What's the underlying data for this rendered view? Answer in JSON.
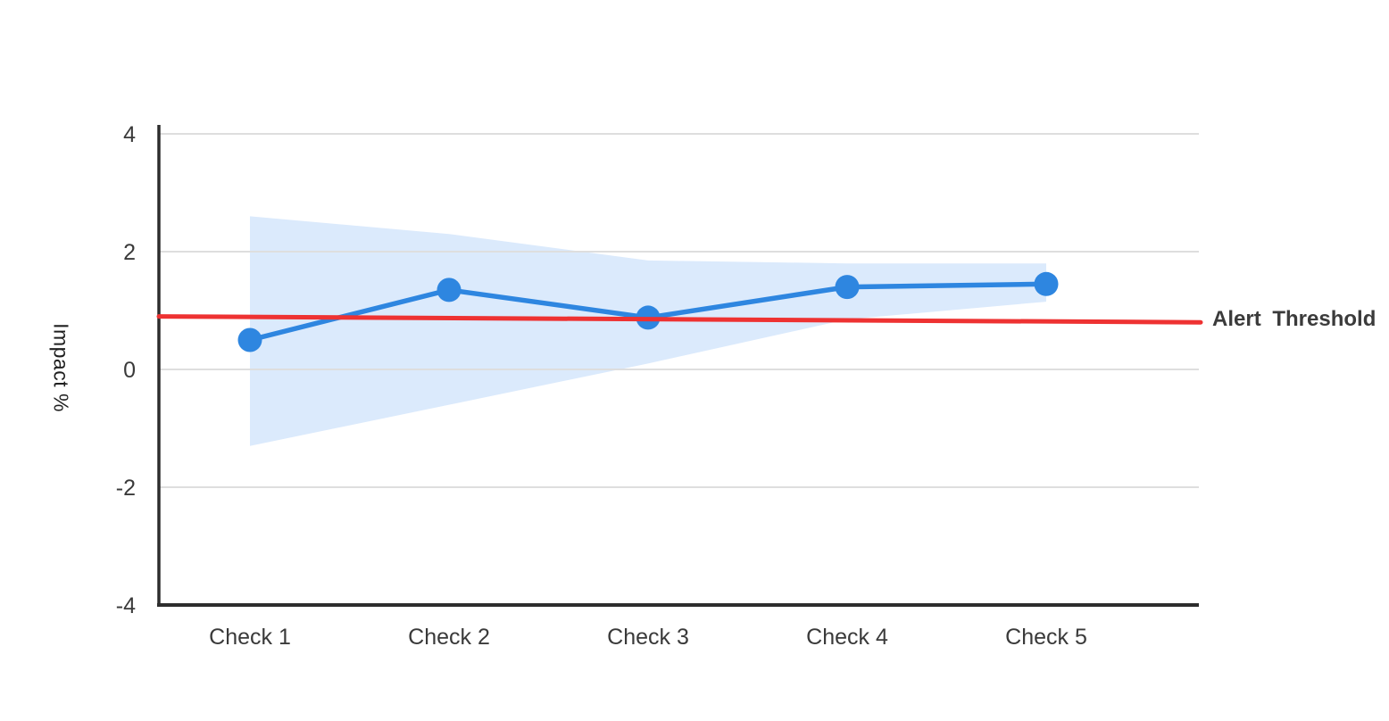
{
  "chart_data": {
    "type": "line",
    "title": "",
    "xlabel": "",
    "ylabel": "Impact %",
    "categories": [
      "Check 1",
      "Check 2",
      "Check 3",
      "Check 4",
      "Check 5"
    ],
    "series": [
      {
        "name": "Impact",
        "values": [
          0.5,
          1.35,
          0.88,
          1.4,
          1.45
        ]
      }
    ],
    "confidence_band": {
      "upper": [
        2.6,
        2.3,
        1.85,
        1.8,
        1.8
      ],
      "lower": [
        -1.3,
        -0.6,
        0.1,
        0.85,
        1.15
      ]
    },
    "threshold": {
      "label": "Alert Threshold",
      "start_value": 0.9,
      "end_value": 0.8
    },
    "ylim": [
      -4,
      4
    ],
    "yticks": [
      4,
      2,
      0,
      -2,
      -4
    ],
    "ytick_labels": [
      "4",
      "2",
      "0",
      "-2",
      "-4"
    ],
    "grid": true,
    "legend_position": "none"
  },
  "colors": {
    "line": "#2e86e0",
    "marker": "#2e86e0",
    "band": "#dbeafc",
    "threshold": "#ee3232",
    "grid": "#dedede",
    "spine": "#2d2d2d",
    "tick_text": "#3a3a3a",
    "background": "#ffffff"
  }
}
